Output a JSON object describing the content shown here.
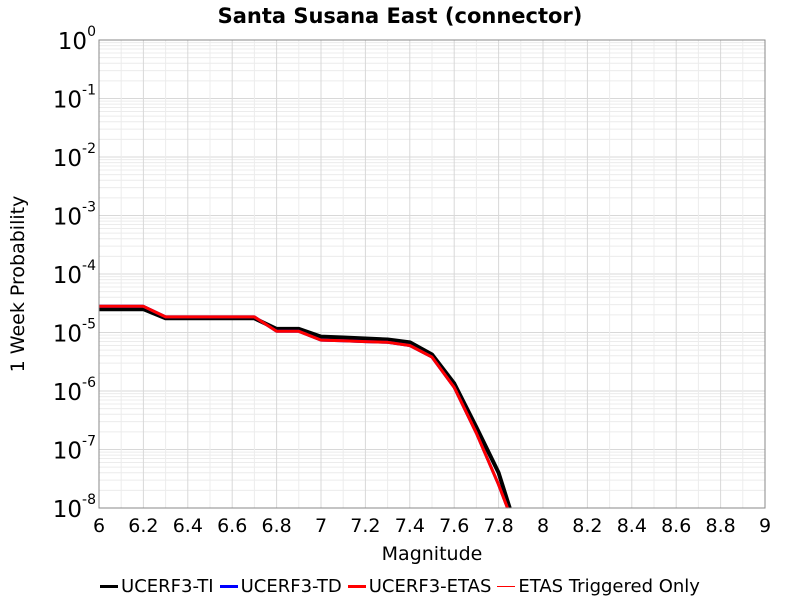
{
  "chart_data": {
    "type": "line",
    "title": "Santa Susana East (connector)",
    "xlabel": "Magnitude",
    "ylabel": "1 Week Probability",
    "xlim": [
      6,
      9
    ],
    "ylim": [
      1e-08,
      1
    ],
    "yscale": "log",
    "x_ticks": [
      "6",
      "6.2",
      "6.4",
      "6.6",
      "6.8",
      "7",
      "7.2",
      "7.4",
      "7.6",
      "7.8",
      "8",
      "8.2",
      "8.4",
      "8.6",
      "8.8",
      "9"
    ],
    "y_tick_exponents": [
      "0",
      "-1",
      "-2",
      "-3",
      "-4",
      "-5",
      "-6",
      "-7",
      "-8"
    ],
    "y_tick_base": "10",
    "grid": true,
    "legend_position": "bottom",
    "series": [
      {
        "name": "UCERF3-TI",
        "color": "#000000",
        "x": [
          6.0,
          6.2,
          6.3,
          6.4,
          6.5,
          6.6,
          6.7,
          6.8,
          6.9,
          7.0,
          7.1,
          7.2,
          7.3,
          7.4,
          7.5,
          7.6,
          7.7,
          7.8,
          7.85
        ],
        "y": [
          2.5e-05,
          2.5e-05,
          1.75e-05,
          1.75e-05,
          1.75e-05,
          1.75e-05,
          1.75e-05,
          1.15e-05,
          1.15e-05,
          8.5e-06,
          8.2e-06,
          7.9e-06,
          7.6e-06,
          6.8e-06,
          4.2e-06,
          1.35e-06,
          2.4e-07,
          4e-08,
          1e-08
        ]
      },
      {
        "name": "UCERF3-TD",
        "color": "#0000ff",
        "x": [
          6.0,
          6.2,
          6.3,
          6.4,
          6.5,
          6.6,
          6.7,
          6.8,
          6.9,
          7.0,
          7.1,
          7.2,
          7.3,
          7.4,
          7.5,
          7.6,
          7.7,
          7.8,
          7.84
        ],
        "y": [
          2.8e-05,
          2.8e-05,
          1.85e-05,
          1.85e-05,
          1.85e-05,
          1.85e-05,
          1.85e-05,
          1.05e-05,
          1.05e-05,
          7.4e-06,
          7.2e-06,
          7e-06,
          6.8e-06,
          6e-06,
          3.8e-06,
          1.15e-06,
          1.9e-07,
          2.5e-08,
          1e-08
        ]
      },
      {
        "name": "UCERF3-ETAS",
        "color": "#ff0000",
        "x": [
          6.0,
          6.2,
          6.3,
          6.4,
          6.5,
          6.6,
          6.7,
          6.8,
          6.9,
          7.0,
          7.1,
          7.2,
          7.3,
          7.4,
          7.5,
          7.6,
          7.7,
          7.8,
          7.84
        ],
        "y": [
          2.8e-05,
          2.8e-05,
          1.85e-05,
          1.85e-05,
          1.85e-05,
          1.85e-05,
          1.85e-05,
          1.05e-05,
          1.05e-05,
          7.4e-06,
          7.2e-06,
          7e-06,
          6.8e-06,
          6e-06,
          3.8e-06,
          1.15e-06,
          1.9e-07,
          2.5e-08,
          1e-08
        ]
      },
      {
        "name": "ETAS Triggered Only",
        "color": "#ff0000",
        "x": [],
        "y": []
      }
    ]
  }
}
